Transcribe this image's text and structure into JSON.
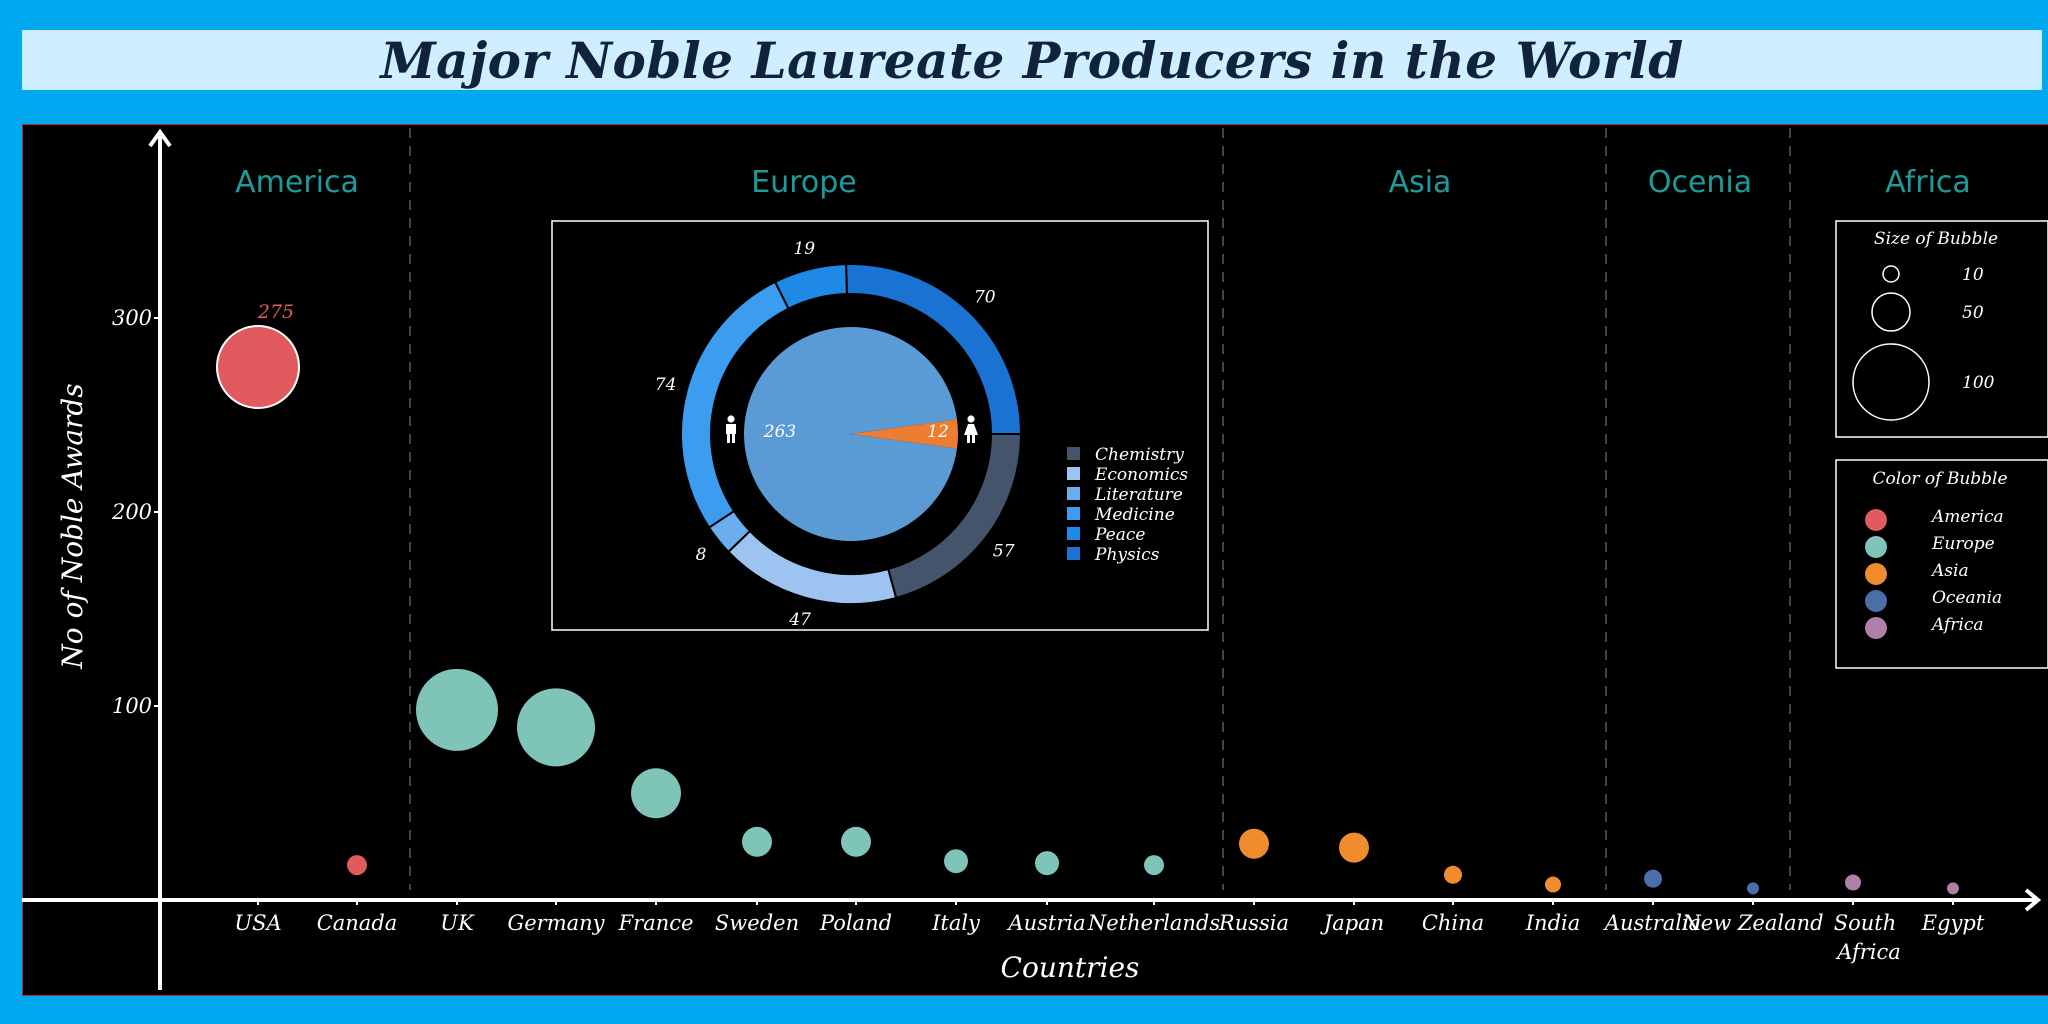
{
  "title": "Major Noble Laureate Producers in the World",
  "colors": {
    "background": "#00A8F0",
    "title_bg": "#CFEEFF",
    "plot_bg": "#000000",
    "region_label": "#1E9A9A"
  },
  "chart_data": [
    {
      "type": "scatter",
      "subtype": "bubble",
      "xlabel": "Countries",
      "ylabel": "No of Noble Awards",
      "yticks": [
        100,
        200,
        300
      ],
      "ylim": [
        0,
        400
      ],
      "regions": [
        {
          "name": "America",
          "countries": [
            "USA",
            "Canada"
          ]
        },
        {
          "name": "Europe",
          "countries": [
            "UK",
            "Germany",
            "France",
            "Sweden",
            "Poland",
            "Italy",
            "Austria",
            "Netherlands"
          ]
        },
        {
          "name": "Asia",
          "countries": [
            "Russia",
            "Japan",
            "China",
            "India"
          ]
        },
        {
          "name": "Ocenia",
          "countries": [
            "Australia",
            "New Zealand"
          ]
        },
        {
          "name": "Africa",
          "countries": [
            "South Africa",
            "Egypt"
          ]
        }
      ],
      "region_colors": {
        "America": "#E05A5E",
        "Europe": "#7EC4B8",
        "Asia": "#F08C2E",
        "Oceania": "#4A6FA8",
        "Africa": "#B07FA8"
      },
      "points": [
        {
          "country": "USA",
          "region": "America",
          "value": 275,
          "label": "275"
        },
        {
          "country": "Canada",
          "region": "America",
          "value": 18
        },
        {
          "country": "UK",
          "region": "Europe",
          "value": 98
        },
        {
          "country": "Germany",
          "region": "Europe",
          "value": 89
        },
        {
          "country": "France",
          "region": "Europe",
          "value": 55
        },
        {
          "country": "Sweden",
          "region": "Europe",
          "value": 30
        },
        {
          "country": "Poland",
          "region": "Europe",
          "value": 30
        },
        {
          "country": "Italy",
          "region": "Europe",
          "value": 20
        },
        {
          "country": "Austria",
          "region": "Europe",
          "value": 19
        },
        {
          "country": "Netherlands",
          "region": "Europe",
          "value": 18
        },
        {
          "country": "Russia",
          "region": "Asia",
          "value": 29
        },
        {
          "country": "Japan",
          "region": "Asia",
          "value": 27
        },
        {
          "country": "China",
          "region": "Asia",
          "value": 13
        },
        {
          "country": "India",
          "region": "Asia",
          "value": 8
        },
        {
          "country": "Australia",
          "region": "Oceania",
          "value": 11
        },
        {
          "country": "New Zealand",
          "region": "Oceania",
          "value": 6
        },
        {
          "country": "South Africa",
          "region": "Africa",
          "value": 9
        },
        {
          "country": "Egypt",
          "region": "Africa",
          "value": 6
        }
      ],
      "size_legend": {
        "title": "Size of Bubble",
        "sizes": [
          10,
          50,
          100
        ]
      },
      "color_legend": {
        "title": "Color of Bubble",
        "items": [
          {
            "label": "America",
            "color": "#E05A5E"
          },
          {
            "label": "Europe",
            "color": "#7EC4B8"
          },
          {
            "label": "Asia",
            "color": "#F08C2E"
          },
          {
            "label": "Oceania",
            "color": "#4A6FA8"
          },
          {
            "label": "Africa",
            "color": "#B07FA8"
          }
        ]
      }
    },
    {
      "type": "pie",
      "subtype": "donut",
      "inner_pie": [
        {
          "label": "263",
          "value": 263,
          "color": "#5B9BD5"
        },
        {
          "label": "12",
          "value": 12,
          "color": "#ED7D31"
        }
      ],
      "outer_ring": [
        {
          "category": "Chemistry",
          "value": 57,
          "color": "#44546A"
        },
        {
          "category": "Economics",
          "value": 47,
          "color": "#9DC3F0"
        },
        {
          "category": "Literature",
          "value": 8,
          "color": "#6AAEF0"
        },
        {
          "category": "Medicine",
          "value": 74,
          "color": "#3C9CF0"
        },
        {
          "category": "Peace",
          "value": 19,
          "color": "#1E8AE6"
        },
        {
          "category": "Physics",
          "value": 70,
          "color": "#1A73D2"
        }
      ],
      "legend": [
        "Chemistry",
        "Economics",
        "Literature",
        "Medicine",
        "Peace",
        "Physics"
      ]
    }
  ]
}
